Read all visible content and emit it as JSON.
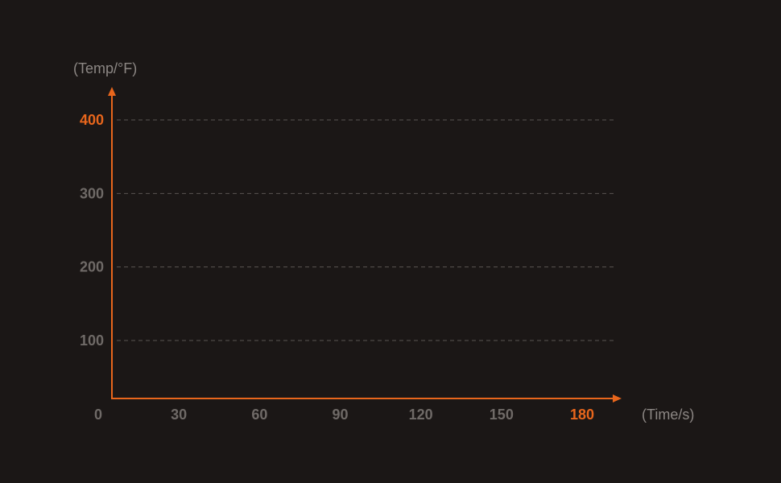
{
  "chart_data": {
    "type": "line",
    "title": "",
    "xlabel": "(Time/s)",
    "ylabel": "(Temp/°F)",
    "xlim": [
      0,
      180
    ],
    "ylim": [
      0,
      400
    ],
    "x_ticks": [
      {
        "value": 0,
        "label": "0"
      },
      {
        "value": 30,
        "label": "30"
      },
      {
        "value": 60,
        "label": "60"
      },
      {
        "value": 90,
        "label": "90"
      },
      {
        "value": 120,
        "label": "120"
      },
      {
        "value": 150,
        "label": "150"
      },
      {
        "value": 180,
        "label": "180",
        "highlight": true
      }
    ],
    "y_ticks": [
      {
        "value": 100,
        "label": "100"
      },
      {
        "value": 200,
        "label": "200"
      },
      {
        "value": 300,
        "label": "300"
      },
      {
        "value": 400,
        "label": "400",
        "highlight": true
      }
    ],
    "grid": "horizontal-dashed",
    "series": []
  },
  "colors": {
    "background": "#1b1716",
    "axis": "#e8661c",
    "highlight_label": "#e8661c",
    "tick_label": "#6f6a67",
    "axis_title": "#8c8784",
    "gridline": "#5a5552"
  }
}
